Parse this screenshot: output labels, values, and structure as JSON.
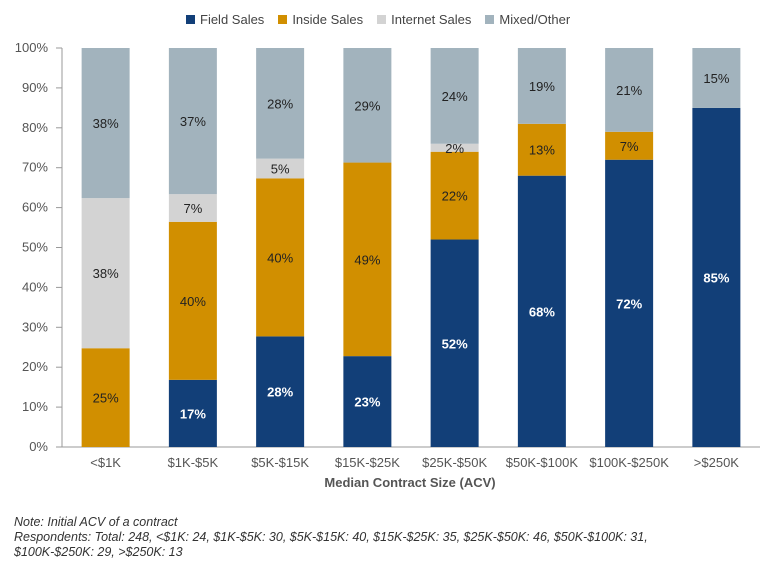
{
  "chart_data": {
    "type": "bar",
    "stacked": true,
    "categories": [
      "<$1K",
      "$1K-$5K",
      "$5K-$15K",
      "$15K-$25K",
      "$25K-$50K",
      "$50K-$100K",
      "$100K-$250K",
      ">$250K"
    ],
    "series": [
      {
        "name": "Field Sales",
        "color": "#123f78",
        "values": [
          0,
          17,
          28,
          23,
          52,
          68,
          72,
          85
        ]
      },
      {
        "name": "Inside Sales",
        "color": "#d18f00",
        "values": [
          25,
          40,
          40,
          49,
          22,
          13,
          7,
          0
        ]
      },
      {
        "name": "Internet Sales",
        "color": "#d3d3d3",
        "values": [
          38,
          7,
          5,
          0,
          2,
          0,
          0,
          0
        ]
      },
      {
        "name": "Mixed/Other",
        "color": "#a2b3bd",
        "values": [
          38,
          37,
          28,
          29,
          24,
          19,
          21,
          15
        ]
      }
    ],
    "data_labels": [
      [
        "",
        "17%",
        "28%",
        "23%",
        "52%",
        "68%",
        "72%",
        "85%"
      ],
      [
        "25%",
        "40%",
        "40%",
        "49%",
        "22%",
        "13%",
        "7%",
        ""
      ],
      [
        "38%",
        "7%",
        "5%",
        "",
        "2%",
        "",
        "",
        ""
      ],
      [
        "38%",
        "37%",
        "28%",
        "29%",
        "24%",
        "19%",
        "21%",
        "15%"
      ]
    ],
    "label_colors": [
      "#ffffff",
      "#222222",
      "#222222",
      "#222222"
    ],
    "yticks": [
      "0%",
      "10%",
      "20%",
      "30%",
      "40%",
      "50%",
      "60%",
      "70%",
      "80%",
      "90%",
      "100%"
    ],
    "ylim": [
      0,
      100
    ],
    "xlabel": "Median Contract Size (ACV)",
    "ylabel": "",
    "title": "",
    "legend_position": "top-center",
    "grid": false
  },
  "note": {
    "line1": "Note: Initial ACV of a contract",
    "line2": "Respondents: Total: 248, <$1K: 24, $1K-$5K: 30, $5K-$15K: 40, $15K-$25K: 35, $25K-$50K: 46, $50K-$100K: 31,",
    "line3": "$100K-$250K: 29, >$250K: 13"
  }
}
